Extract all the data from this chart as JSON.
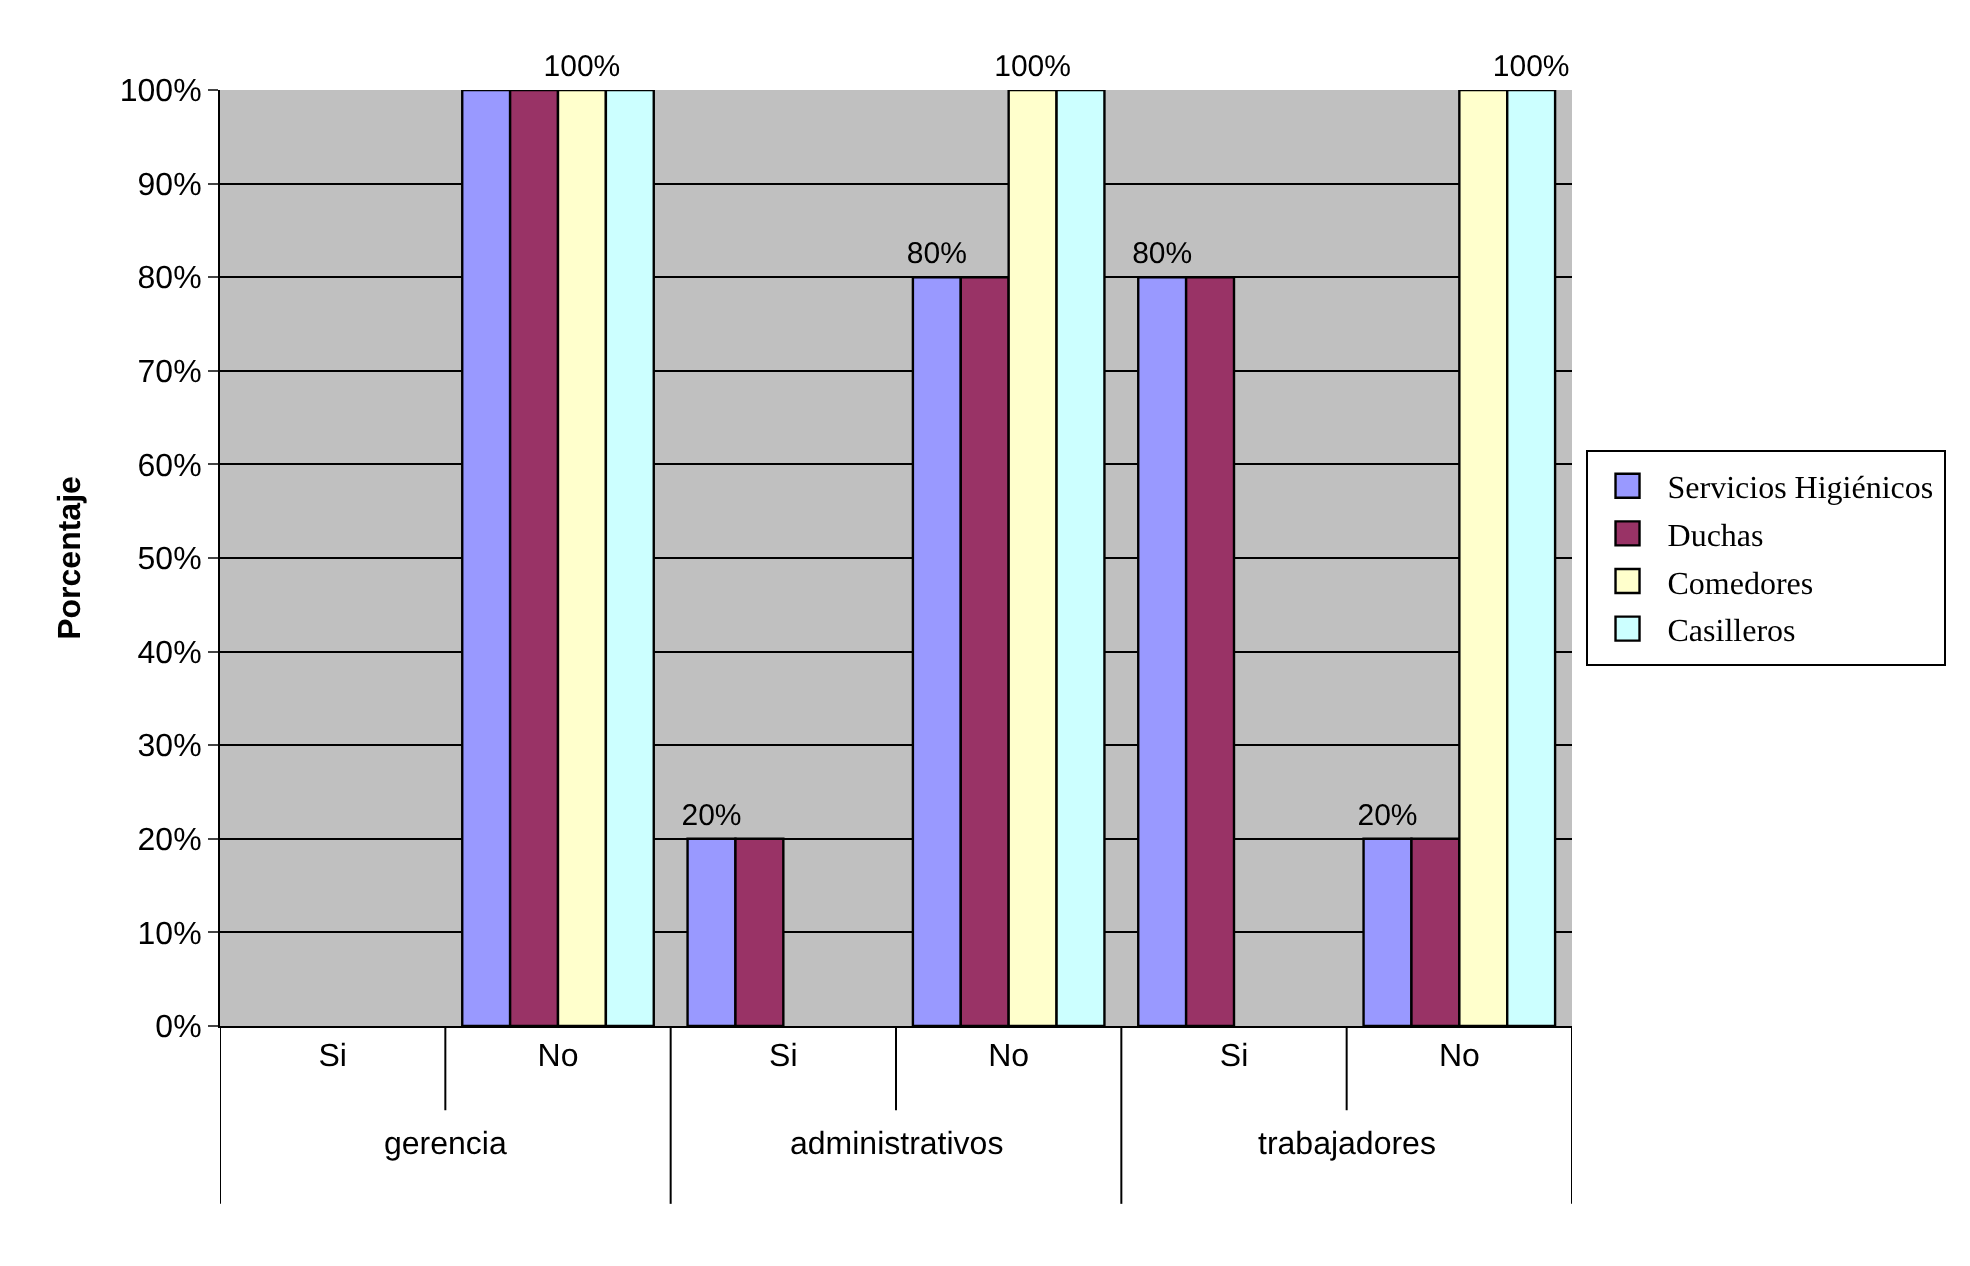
{
  "chart_data": {
    "type": "bar",
    "ylabel": "Porcentaje",
    "categories": [
      "Si",
      "No",
      "Si",
      "No",
      "Si",
      "No"
    ],
    "annotations": [
      "gerencia",
      "administrativos",
      "trabajadores"
    ],
    "series": [
      {
        "name": "Servicios Higiénicos",
        "color": "#9999ff",
        "values": [
          null,
          100,
          20,
          80,
          80,
          20
        ],
        "value_labels": [
          null,
          null,
          "20%",
          "80%",
          "80%",
          "20%"
        ]
      },
      {
        "name": "Duchas",
        "color": "#993366",
        "values": [
          null,
          100,
          20,
          80,
          80,
          20
        ],
        "value_labels": [
          null,
          null,
          null,
          null,
          null,
          null
        ]
      },
      {
        "name": "Comedores",
        "color": "#ffffcc",
        "values": [
          null,
          100,
          null,
          100,
          null,
          100
        ],
        "value_labels": [
          null,
          "100%",
          null,
          "100%",
          null,
          null
        ]
      },
      {
        "name": "Casilleros",
        "color": "#ccffff",
        "values": [
          null,
          100,
          null,
          100,
          null,
          100
        ],
        "value_labels": [
          null,
          null,
          null,
          null,
          null,
          "100%"
        ]
      }
    ],
    "ylim": [
      0,
      100
    ],
    "yticks": [
      {
        "value": 0,
        "label": "0%"
      },
      {
        "value": 10,
        "label": "10%"
      },
      {
        "value": 20,
        "label": "20%"
      },
      {
        "value": 30,
        "label": "30%"
      },
      {
        "value": 40,
        "label": "40%"
      },
      {
        "value": 50,
        "label": "50%"
      },
      {
        "value": 60,
        "label": "60%"
      },
      {
        "value": 70,
        "label": "70%"
      },
      {
        "value": 80,
        "label": "80%"
      },
      {
        "value": 90,
        "label": "90%"
      },
      {
        "value": 100,
        "label": "100%"
      }
    ],
    "grid": "y",
    "legend": "right"
  }
}
